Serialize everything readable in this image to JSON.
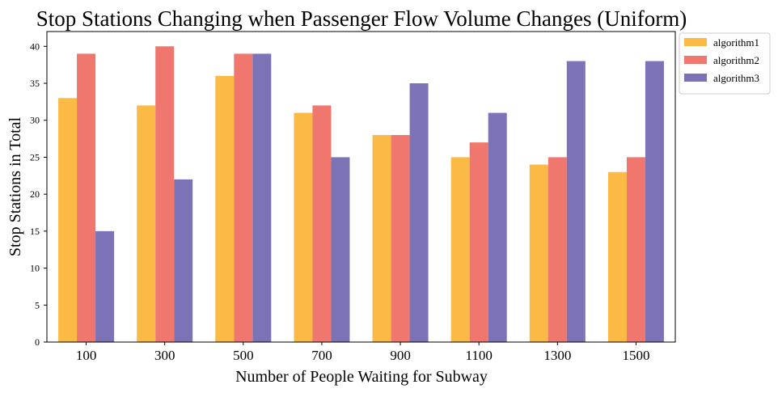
{
  "chart_data": {
    "type": "bar",
    "title": "Stop Stations Changing when Passenger Flow Volume Changes (Uniform)",
    "xlabel": "Number of People Waiting for Subway",
    "ylabel": "Stop Stations in Total",
    "categories": [
      "100",
      "300",
      "500",
      "700",
      "900",
      "1100",
      "1300",
      "1500"
    ],
    "series": [
      {
        "name": "algorithm1",
        "color": "#FBB946",
        "values": [
          33,
          32,
          36,
          31,
          28,
          25,
          24,
          23
        ]
      },
      {
        "name": "algorithm2",
        "color": "#F0776D",
        "values": [
          39,
          40,
          39,
          32,
          28,
          27,
          25,
          25
        ]
      },
      {
        "name": "algorithm3",
        "color": "#7C73B6",
        "values": [
          15,
          22,
          39,
          25,
          35,
          31,
          38,
          38
        ]
      }
    ],
    "ylim": [
      0,
      42
    ],
    "yticks": [
      0,
      5,
      10,
      15,
      20,
      25,
      30,
      35,
      40
    ],
    "grid": false,
    "legend": "outside-top-right"
  }
}
